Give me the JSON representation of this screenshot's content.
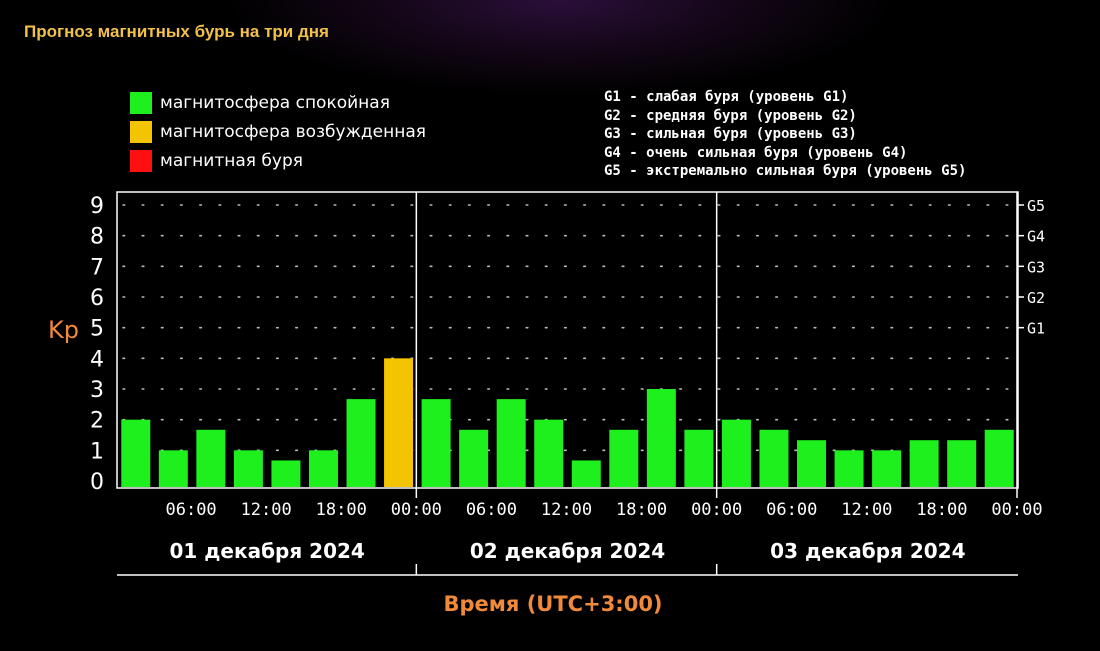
{
  "title": "Прогноз магнитных бурь на три дня",
  "legend": [
    {
      "label": "магнитосфера спокойная",
      "color": "#1ef01e"
    },
    {
      "label": "магнитосфера возбужденная",
      "color": "#f5c400"
    },
    {
      "label": "магнитная буря",
      "color": "#ff1010"
    }
  ],
  "g_legend": [
    "G1 - слабая буря (уровень G1)",
    "G2 - средняя буря (уровень G2)",
    "G3 - сильная буря (уровень G3)",
    "G4 - очень сильная буря (уровень G4)",
    "G5 - экстремально сильная буря (уровень G5)"
  ],
  "chart_data": {
    "type": "bar",
    "ylabel": "Kp",
    "xlabel": "Время (UTC+3:00)",
    "ylim": [
      0,
      9
    ],
    "yticks": [
      "0",
      "1",
      "2",
      "3",
      "4",
      "5",
      "6",
      "7",
      "8",
      "9"
    ],
    "right_ticks": [
      {
        "label": "G1",
        "value": 5
      },
      {
        "label": "G2",
        "value": 6
      },
      {
        "label": "G3",
        "value": 7
      },
      {
        "label": "G4",
        "value": 8
      },
      {
        "label": "G5",
        "value": 9
      }
    ],
    "x_tick_labels": [
      "06:00",
      "12:00",
      "18:00",
      "00:00",
      "06:00",
      "12:00",
      "18:00",
      "00:00",
      "06:00",
      "12:00",
      "18:00",
      "00:00"
    ],
    "days": [
      "01 декабря 2024",
      "02 декабря 2024",
      "03 декабря 2024"
    ],
    "values": [
      2,
      1,
      1.67,
      1,
      0.67,
      1,
      2.67,
      4,
      2.67,
      1.67,
      2.67,
      2,
      0.67,
      1.67,
      3,
      1.67,
      2,
      1.67,
      1.33,
      1,
      1,
      1.33,
      1.33,
      1.67
    ],
    "colors": [
      "#1ef01e",
      "#1ef01e",
      "#1ef01e",
      "#1ef01e",
      "#1ef01e",
      "#1ef01e",
      "#1ef01e",
      "#f5c400",
      "#1ef01e",
      "#1ef01e",
      "#1ef01e",
      "#1ef01e",
      "#1ef01e",
      "#1ef01e",
      "#1ef01e",
      "#1ef01e",
      "#1ef01e",
      "#1ef01e",
      "#1ef01e",
      "#1ef01e",
      "#1ef01e",
      "#1ef01e",
      "#1ef01e",
      "#1ef01e"
    ],
    "grid": "dotted"
  }
}
